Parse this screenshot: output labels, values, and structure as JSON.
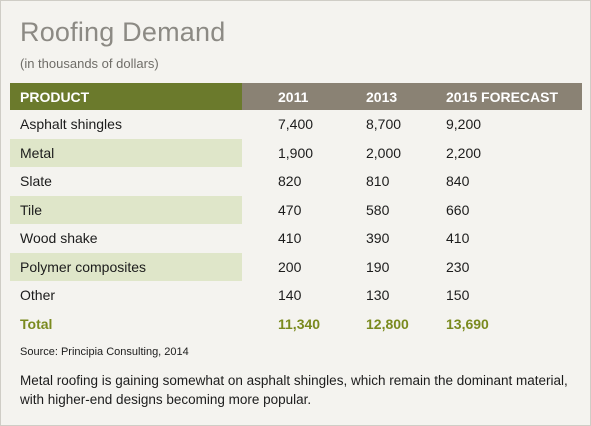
{
  "title": "Roofing Demand",
  "subtitle": "(in thousands of dollars)",
  "colors": {
    "header_first": "#6b7a2c",
    "header_rest": "#8a8274",
    "row_shade": "#dfe6c9",
    "total_text": "#7a8a1e"
  },
  "chart_data": {
    "type": "table",
    "title": "Roofing Demand",
    "subtitle": "(in thousands of dollars)",
    "columns": [
      "PRODUCT",
      "2011",
      "2013",
      "2015 FORECAST"
    ],
    "rows": [
      {
        "label": "Asphalt shingles",
        "values": [
          "7,400",
          "8,700",
          "9,200"
        ]
      },
      {
        "label": "Metal",
        "values": [
          "1,900",
          "2,000",
          "2,200"
        ]
      },
      {
        "label": "Slate",
        "values": [
          "820",
          "810",
          "840"
        ]
      },
      {
        "label": "Tile",
        "values": [
          "470",
          "580",
          "660"
        ]
      },
      {
        "label": "Wood shake",
        "values": [
          "410",
          "390",
          "410"
        ]
      },
      {
        "label": "Polymer composites",
        "values": [
          "200",
          "190",
          "230"
        ]
      },
      {
        "label": "Other",
        "values": [
          "140",
          "130",
          "150"
        ]
      }
    ],
    "total": {
      "label": "Total",
      "values": [
        "11,340",
        "12,800",
        "13,690"
      ]
    }
  },
  "source": "Source: Principia Consulting, 2014",
  "note": "Metal roofing is gaining somewhat on asphalt shingles, which remain the dominant material, with higher-end designs becoming more popular."
}
